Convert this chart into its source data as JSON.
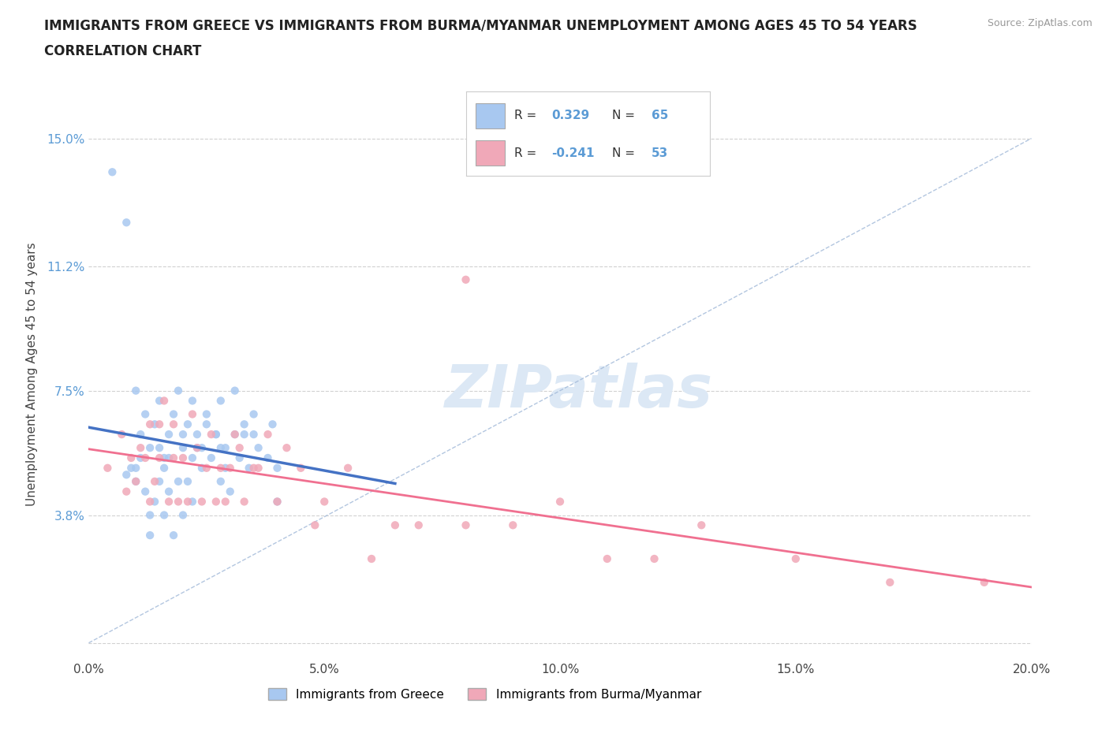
{
  "title_line1": "IMMIGRANTS FROM GREECE VS IMMIGRANTS FROM BURMA/MYANMAR UNEMPLOYMENT AMONG AGES 45 TO 54 YEARS",
  "title_line2": "CORRELATION CHART",
  "source_text": "Source: ZipAtlas.com",
  "ylabel": "Unemployment Among Ages 45 to 54 years",
  "xlim": [
    0.0,
    0.2
  ],
  "ylim": [
    -0.005,
    0.165
  ],
  "ytick_vals": [
    0.0,
    0.038,
    0.075,
    0.112,
    0.15
  ],
  "ytick_labels": [
    "",
    "3.8%",
    "7.5%",
    "11.2%",
    "15.0%"
  ],
  "xtick_vals": [
    0.0,
    0.05,
    0.1,
    0.15,
    0.2
  ],
  "xtick_labels": [
    "0.0%",
    "5.0%",
    "10.0%",
    "15.0%",
    "20.0%"
  ],
  "greece_color": "#a8c8f0",
  "burma_color": "#f0a8b8",
  "greece_line_color": "#4472c4",
  "burma_line_color": "#f07090",
  "diag_color": "#a0b8d8",
  "watermark_color": "#dce8f5",
  "greece_scatter_x": [
    0.005,
    0.008,
    0.008,
    0.009,
    0.01,
    0.01,
    0.011,
    0.012,
    0.013,
    0.013,
    0.014,
    0.015,
    0.015,
    0.016,
    0.016,
    0.017,
    0.017,
    0.018,
    0.019,
    0.02,
    0.02,
    0.021,
    0.022,
    0.022,
    0.023,
    0.024,
    0.025,
    0.026,
    0.027,
    0.028,
    0.028,
    0.029,
    0.03,
    0.031,
    0.032,
    0.033,
    0.034,
    0.035,
    0.036,
    0.038,
    0.039,
    0.04,
    0.04,
    0.01,
    0.011,
    0.012,
    0.013,
    0.014,
    0.015,
    0.016,
    0.017,
    0.018,
    0.019,
    0.02,
    0.021,
    0.022,
    0.023,
    0.024,
    0.025,
    0.027,
    0.028,
    0.029,
    0.031,
    0.033,
    0.035
  ],
  "greece_scatter_y": [
    0.14,
    0.125,
    0.05,
    0.052,
    0.048,
    0.052,
    0.055,
    0.045,
    0.038,
    0.032,
    0.042,
    0.048,
    0.058,
    0.038,
    0.052,
    0.045,
    0.055,
    0.032,
    0.048,
    0.038,
    0.062,
    0.048,
    0.042,
    0.055,
    0.058,
    0.052,
    0.065,
    0.055,
    0.062,
    0.048,
    0.058,
    0.052,
    0.045,
    0.062,
    0.055,
    0.062,
    0.052,
    0.068,
    0.058,
    0.055,
    0.065,
    0.042,
    0.052,
    0.075,
    0.062,
    0.068,
    0.058,
    0.065,
    0.072,
    0.055,
    0.062,
    0.068,
    0.075,
    0.058,
    0.065,
    0.072,
    0.062,
    0.058,
    0.068,
    0.062,
    0.072,
    0.058,
    0.075,
    0.065,
    0.062
  ],
  "burma_scatter_x": [
    0.004,
    0.007,
    0.008,
    0.009,
    0.01,
    0.011,
    0.012,
    0.013,
    0.013,
    0.014,
    0.015,
    0.015,
    0.016,
    0.017,
    0.018,
    0.018,
    0.019,
    0.02,
    0.021,
    0.022,
    0.023,
    0.024,
    0.025,
    0.026,
    0.027,
    0.028,
    0.029,
    0.03,
    0.031,
    0.032,
    0.033,
    0.035,
    0.036,
    0.038,
    0.04,
    0.042,
    0.045,
    0.048,
    0.05,
    0.055,
    0.06,
    0.065,
    0.07,
    0.08,
    0.09,
    0.1,
    0.11,
    0.12,
    0.13,
    0.15,
    0.17,
    0.19,
    0.08
  ],
  "burma_scatter_y": [
    0.052,
    0.062,
    0.045,
    0.055,
    0.048,
    0.058,
    0.055,
    0.065,
    0.042,
    0.048,
    0.055,
    0.065,
    0.072,
    0.042,
    0.055,
    0.065,
    0.042,
    0.055,
    0.042,
    0.068,
    0.058,
    0.042,
    0.052,
    0.062,
    0.042,
    0.052,
    0.042,
    0.052,
    0.062,
    0.058,
    0.042,
    0.052,
    0.052,
    0.062,
    0.042,
    0.058,
    0.052,
    0.035,
    0.042,
    0.052,
    0.025,
    0.035,
    0.035,
    0.035,
    0.035,
    0.042,
    0.025,
    0.025,
    0.035,
    0.025,
    0.018,
    0.018,
    0.108
  ],
  "greece_R": 0.329,
  "greece_N": 65,
  "burma_R": -0.241,
  "burma_N": 53
}
